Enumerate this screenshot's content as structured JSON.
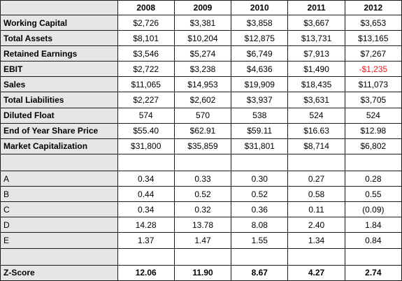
{
  "years": [
    "2008",
    "2009",
    "2010",
    "2011",
    "2012"
  ],
  "financials": [
    {
      "label": "Working Capital",
      "values": [
        "$2,726",
        "$3,381",
        "$3,858",
        "$3,667",
        "$3,653"
      ]
    },
    {
      "label": "Total Assets",
      "values": [
        "$8,101",
        "$10,204",
        "$12,875",
        "$13,731",
        "$13,165"
      ]
    },
    {
      "label": "Retained Earnings",
      "values": [
        "$3,546",
        "$5,274",
        "$6,749",
        "$7,913",
        "$7,267"
      ]
    },
    {
      "label": "EBIT",
      "values": [
        "$2,722",
        "$3,238",
        "$4,636",
        "$1,490",
        "-$1,235"
      ]
    },
    {
      "label": "Sales",
      "values": [
        "$11,065",
        "$14,953",
        "$19,909",
        "$18,435",
        "$11,073"
      ]
    },
    {
      "label": "Total Liabilities",
      "values": [
        "$2,227",
        "$2,602",
        "$3,937",
        "$3,631",
        "$3,705"
      ]
    },
    {
      "label": "Diluted Float",
      "values": [
        "574",
        "570",
        "538",
        "524",
        "524"
      ]
    },
    {
      "label": "End of Year Share Price",
      "values": [
        "$55.40",
        "$62.91",
        "$59.11",
        "$16.63",
        "$12.98"
      ]
    },
    {
      "label": "Market Capitalization",
      "values": [
        "$31,800",
        "$35,859",
        "$31,801",
        "$8,714",
        "$6,802"
      ]
    }
  ],
  "ratios": [
    {
      "label": "A",
      "values": [
        "0.34",
        "0.33",
        "0.30",
        "0.27",
        "0.28"
      ]
    },
    {
      "label": "B",
      "values": [
        "0.44",
        "0.52",
        "0.52",
        "0.58",
        "0.55"
      ]
    },
    {
      "label": "C",
      "values": [
        "0.34",
        "0.32",
        "0.36",
        "0.11",
        "(0.09)"
      ]
    },
    {
      "label": "D",
      "values": [
        "14.28",
        "13.78",
        "8.08",
        "2.40",
        "1.84"
      ]
    },
    {
      "label": "E",
      "values": [
        "1.37",
        "1.47",
        "1.55",
        "1.34",
        "0.84"
      ]
    }
  ],
  "zscore": {
    "label": "Z-Score",
    "values": [
      "12.06",
      "11.90",
      "8.67",
      "4.27",
      "2.74"
    ]
  },
  "colors": {
    "label_fill": "#e6e6e6",
    "negative": "#e02020",
    "border": "#1a1a1a"
  }
}
